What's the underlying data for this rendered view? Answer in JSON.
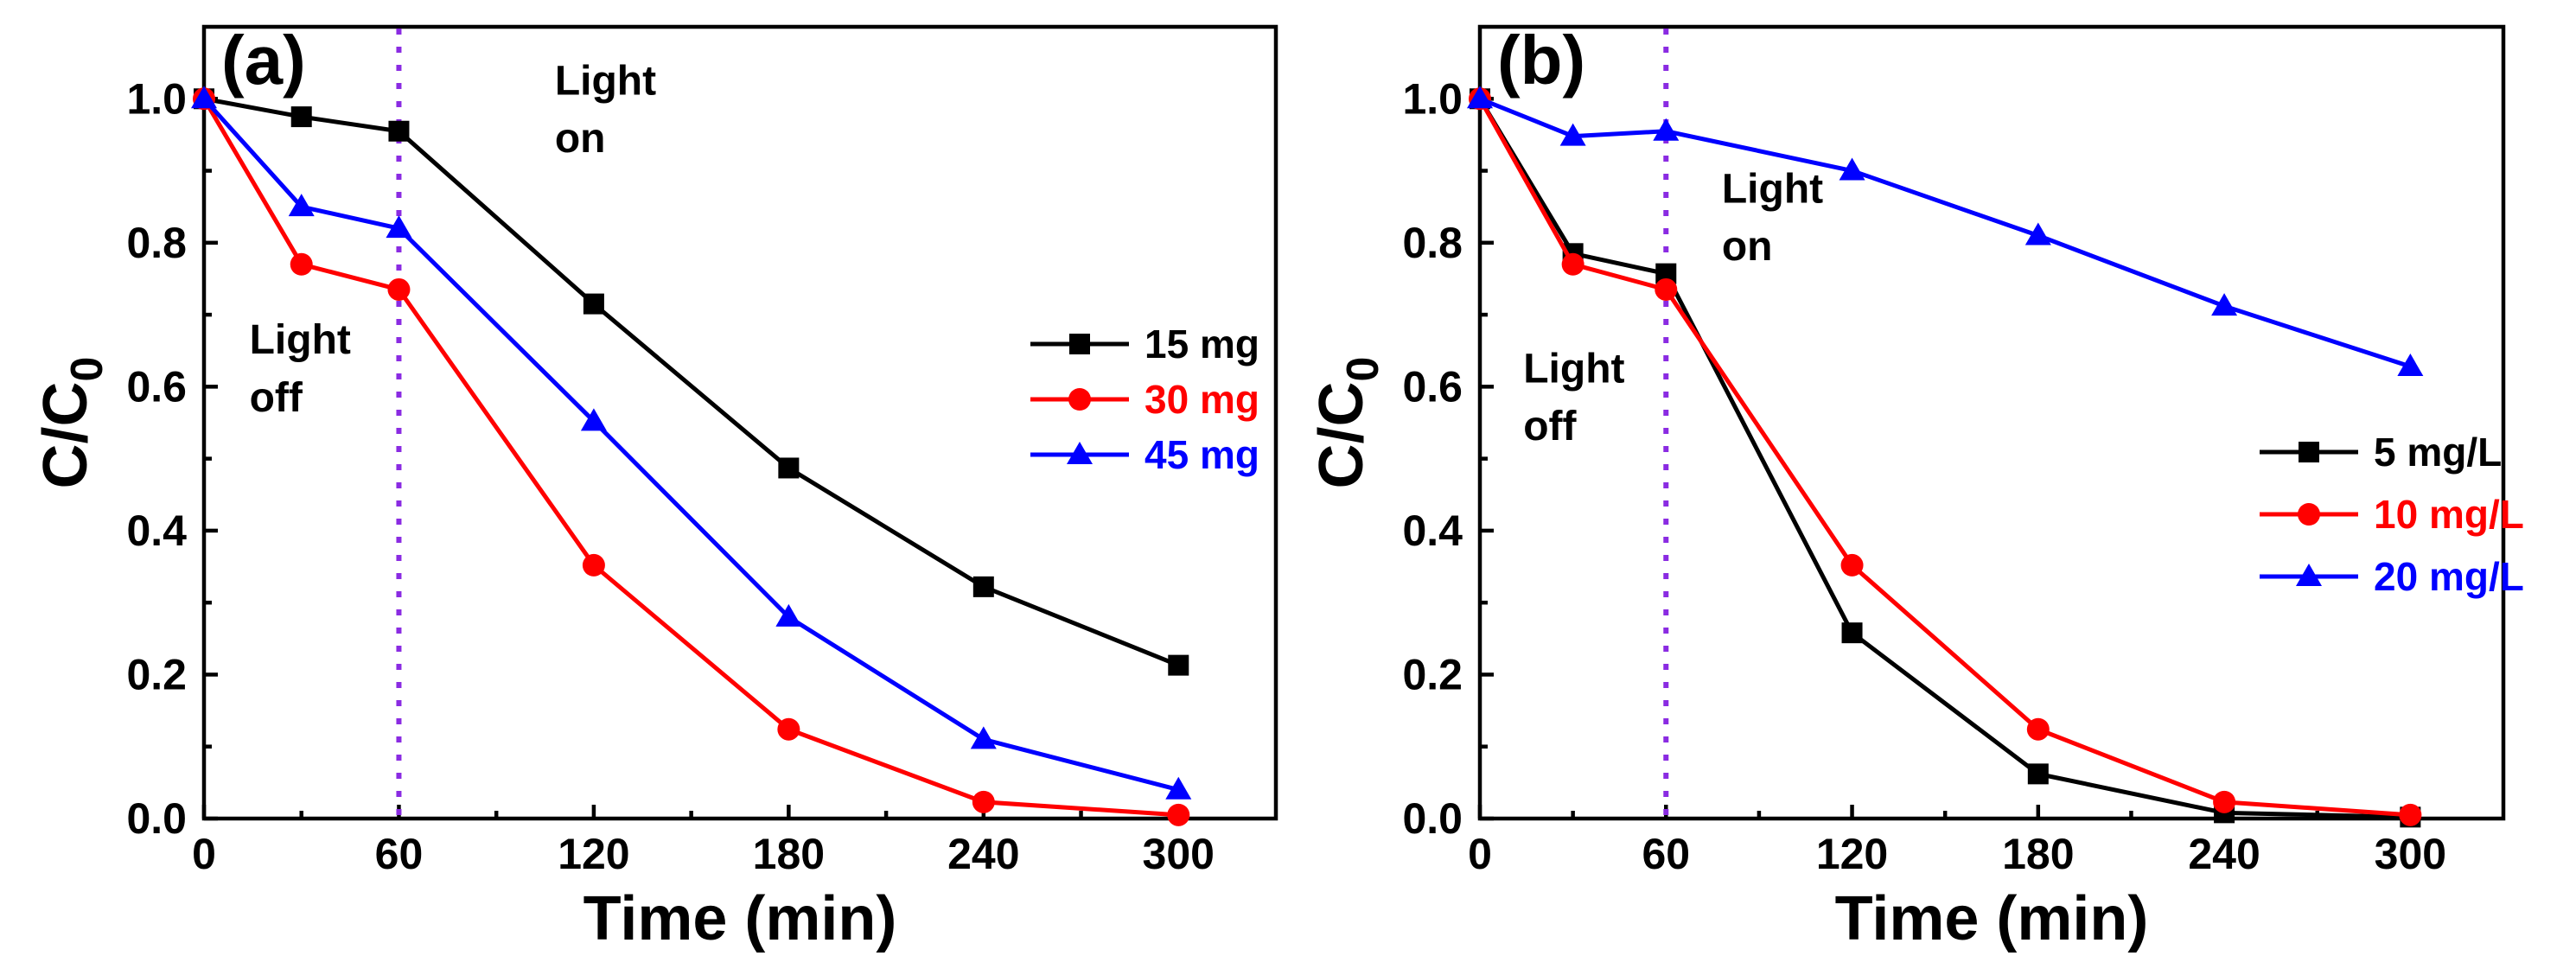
{
  "chart_data": [
    {
      "type": "line",
      "panel_label": "(a)",
      "xlabel": "Time (min)",
      "ylabel": "C/C",
      "ylabel_subscript": "0",
      "xlim": [
        0,
        330
      ],
      "ylim": [
        0,
        1.1
      ],
      "xticks": [
        0,
        60,
        120,
        180,
        240,
        300
      ],
      "yticks": [
        0.0,
        0.2,
        0.4,
        0.6,
        0.8,
        1.0
      ],
      "xtick_labels": [
        "0",
        "60",
        "120",
        "180",
        "240",
        "300"
      ],
      "ytick_labels": [
        "0.0",
        "0.2",
        "0.4",
        "0.6",
        "0.8",
        "1.0"
      ],
      "vline_x": 60,
      "annotations": [
        {
          "text": "Light",
          "x": 108,
          "y": 1.025
        },
        {
          "text": "on",
          "x": 108,
          "y": 0.945
        },
        {
          "text": "Light",
          "x": 14,
          "y": 0.665
        },
        {
          "text": "off",
          "x": 14,
          "y": 0.585
        }
      ],
      "legend_position": "right",
      "series": [
        {
          "name": "15 mg",
          "color": "#000000",
          "marker": "square",
          "x": [
            0,
            30,
            60,
            120,
            180,
            240,
            300
          ],
          "y": [
            1.0,
            0.975,
            0.955,
            0.715,
            0.487,
            0.322,
            0.213
          ]
        },
        {
          "name": "30 mg",
          "color": "#ff0000",
          "marker": "circle",
          "x": [
            0,
            30,
            60,
            120,
            180,
            240,
            300
          ],
          "y": [
            1.0,
            0.77,
            0.735,
            0.352,
            0.124,
            0.023,
            0.005
          ]
        },
        {
          "name": "45 mg",
          "color": "#0000ff",
          "marker": "triangle",
          "x": [
            0,
            30,
            60,
            120,
            180,
            240,
            300
          ],
          "y": [
            1.0,
            0.85,
            0.82,
            0.552,
            0.28,
            0.11,
            0.04
          ]
        }
      ]
    },
    {
      "type": "line",
      "panel_label": "(b)",
      "xlabel": "Time (min)",
      "ylabel": "C/C",
      "ylabel_subscript": "0",
      "xlim": [
        0,
        330
      ],
      "ylim": [
        0,
        1.1
      ],
      "xticks": [
        0,
        60,
        120,
        180,
        240,
        300
      ],
      "yticks": [
        0.0,
        0.2,
        0.4,
        0.6,
        0.8,
        1.0
      ],
      "xtick_labels": [
        "0",
        "60",
        "120",
        "180",
        "240",
        "300"
      ],
      "ytick_labels": [
        "0.0",
        "0.2",
        "0.4",
        "0.6",
        "0.8",
        "1.0"
      ],
      "vline_x": 60,
      "annotations": [
        {
          "text": "Light",
          "x": 78,
          "y": 0.875
        },
        {
          "text": "on",
          "x": 78,
          "y": 0.795
        },
        {
          "text": "Light",
          "x": 14,
          "y": 0.625
        },
        {
          "text": "off",
          "x": 14,
          "y": 0.545
        }
      ],
      "legend_position": "bottom-right",
      "series": [
        {
          "name": "5 mg/L",
          "color": "#000000",
          "marker": "square",
          "x": [
            0,
            30,
            60,
            120,
            180,
            240,
            300
          ],
          "y": [
            1.0,
            0.785,
            0.757,
            0.258,
            0.062,
            0.008,
            0.002
          ]
        },
        {
          "name": "10 mg/L",
          "color": "#ff0000",
          "marker": "circle",
          "x": [
            0,
            30,
            60,
            120,
            180,
            240,
            300
          ],
          "y": [
            1.0,
            0.77,
            0.735,
            0.352,
            0.124,
            0.023,
            0.005
          ]
        },
        {
          "name": "20 mg/L",
          "color": "#0000ff",
          "marker": "triangle",
          "x": [
            0,
            30,
            60,
            120,
            180,
            240,
            300
          ],
          "y": [
            1.0,
            0.948,
            0.955,
            0.9,
            0.81,
            0.712,
            0.628
          ]
        }
      ]
    }
  ]
}
